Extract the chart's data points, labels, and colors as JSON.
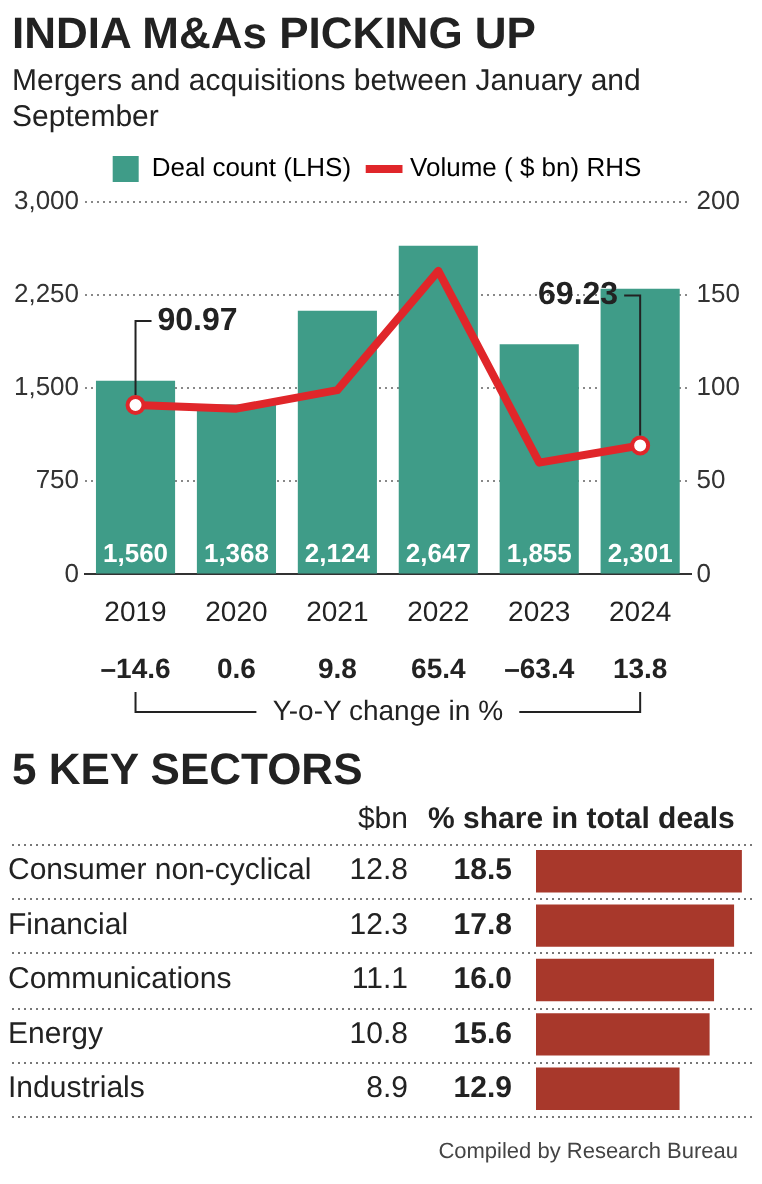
{
  "chart_data": [
    {
      "type": "bar",
      "title": "INDIA M&As PICKING  UP",
      "subtitle": "Mergers and acquisitions between January and September",
      "categories": [
        "2019",
        "2020",
        "2021",
        "2022",
        "2023",
        "2024"
      ],
      "series": [
        {
          "name": "Deal count (LHS)",
          "color": "#3f9c88",
          "values": [
            1560,
            1368,
            2124,
            2647,
            1855,
            2301
          ],
          "value_labels": [
            "1,560",
            "1,368",
            "2,124",
            "2,647",
            "1,855",
            "2,301"
          ]
        },
        {
          "name": "Volume ( $ bn) RHS",
          "type": "line",
          "axis": "y2",
          "color": "#e0262a",
          "values": [
            90.97,
            89,
            99,
            163,
            60,
            69.23
          ],
          "value_labels": [
            "90.97",
            null,
            null,
            null,
            null,
            "69.23"
          ]
        }
      ],
      "ylim": [
        0,
        3000
      ],
      "yticks": [
        0,
        {
          "value": 750,
          "label": "750"
        },
        {
          "value": 1500,
          "label": "1,500"
        },
        {
          "value": 2250,
          "label": "2,250"
        },
        {
          "value": 3000,
          "label": "3,000"
        }
      ],
      "y2lim": [
        0,
        200
      ],
      "y2ticks": [
        0,
        50,
        100,
        150,
        200
      ],
      "annotations": [
        "–14.6",
        "0.6",
        "9.8",
        "65.4",
        "–63.4",
        "13.8",
        "Y-o-Y change in %"
      ],
      "grid": "y",
      "legend": "top"
    },
    {
      "type": "bar",
      "title": "5 KEY SECTORS",
      "orientation": "horizontal",
      "categories": [
        "Consumer non-cyclical",
        "Financial",
        "Communications",
        "Energy",
        "Industrials"
      ],
      "series": [
        {
          "name": "% share in total deals",
          "color": "#a8382b",
          "values": [
            18.5,
            17.8,
            16.0,
            15.6,
            12.9
          ],
          "value_labels": [
            "18.5",
            "17.8",
            "16.0",
            "15.6",
            "12.9"
          ]
        }
      ],
      "data_labels": true,
      "legend": false,
      "annotations": [
        "$bn",
        "12.8",
        "12.3",
        "11.1",
        "10.8",
        "8.9",
        "Compiled by Research Bureau"
      ]
    }
  ]
}
